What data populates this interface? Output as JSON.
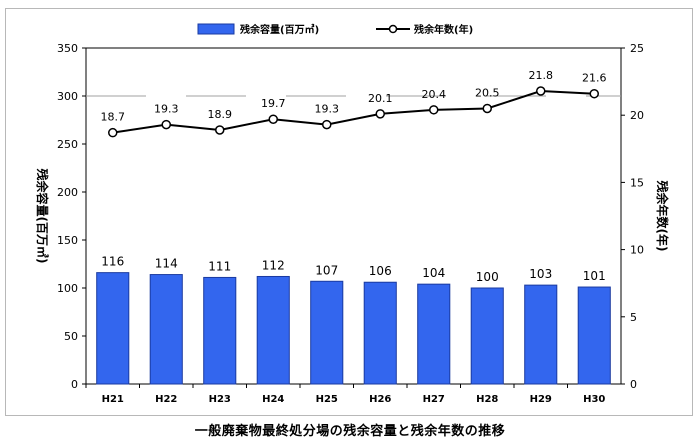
{
  "caption": "一般廃棄物最終処分場の残余容量と残余年数の推移",
  "chart_data": {
    "type": "bar",
    "categories": [
      "H21",
      "H22",
      "H23",
      "H24",
      "H25",
      "H26",
      "H27",
      "H28",
      "H29",
      "H30"
    ],
    "series": [
      {
        "name": "残余容量(百万㎥)",
        "type": "bar",
        "axis": "left",
        "values": [
          116,
          114,
          111,
          112,
          107,
          106,
          104,
          100,
          103,
          101
        ],
        "color": "#3366ee"
      },
      {
        "name": "残余年数(年)",
        "type": "line",
        "axis": "right",
        "values": [
          18.7,
          19.3,
          18.9,
          19.7,
          19.3,
          20.1,
          20.4,
          20.5,
          21.8,
          21.6
        ],
        "color": "#000000"
      }
    ],
    "ylabel": "残余容量(百万㎥)",
    "y2label": "残余年数(年)",
    "ylim": [
      0,
      350
    ],
    "yticks": [
      0,
      50,
      100,
      150,
      200,
      250,
      300,
      350
    ],
    "y2lim": [
      0,
      25
    ],
    "y2ticks": [
      0,
      5,
      10,
      15,
      20,
      25
    ],
    "grid": "dashed horizontal at 300",
    "legend": "top-center"
  }
}
